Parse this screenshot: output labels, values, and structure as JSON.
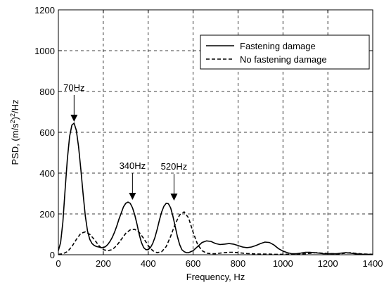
{
  "chart_data": {
    "type": "line",
    "xlabel": "Frequency, Hz",
    "ylabel_prefix": "PSD, (m/s",
    "ylabel_sup1": "2",
    "ylabel_mid": ")",
    "ylabel_sup2": "2",
    "ylabel_suffix": "/Hz",
    "xlim": [
      0,
      1400
    ],
    "ylim": [
      0,
      1200
    ],
    "xticks": [
      0,
      200,
      400,
      600,
      800,
      1000,
      1200,
      1400
    ],
    "yticks": [
      0,
      200,
      400,
      600,
      800,
      1000,
      1200
    ],
    "grid": true,
    "legend_position": "top-right",
    "series": [
      {
        "name": "Fastening damage",
        "style": "solid",
        "x": [
          0,
          10,
          20,
          30,
          40,
          50,
          60,
          70,
          80,
          90,
          100,
          110,
          120,
          130,
          140,
          150,
          160,
          170,
          180,
          190,
          200,
          210,
          220,
          230,
          240,
          250,
          260,
          270,
          280,
          290,
          300,
          310,
          320,
          330,
          340,
          350,
          360,
          370,
          380,
          390,
          400,
          410,
          420,
          430,
          440,
          450,
          460,
          470,
          480,
          490,
          500,
          510,
          520,
          530,
          540,
          550,
          560,
          570,
          580,
          590,
          600,
          620,
          640,
          660,
          680,
          700,
          720,
          740,
          760,
          780,
          800,
          820,
          840,
          860,
          880,
          900,
          920,
          940,
          960,
          980,
          1000,
          1020,
          1040,
          1060,
          1080,
          1100,
          1120,
          1140,
          1160,
          1180,
          1200,
          1220,
          1240,
          1260,
          1280,
          1300,
          1320,
          1340,
          1360,
          1380,
          1400
        ],
        "values": [
          20,
          60,
          160,
          320,
          470,
          580,
          635,
          645,
          610,
          530,
          420,
          300,
          190,
          115,
          75,
          55,
          45,
          40,
          38,
          35,
          35,
          40,
          50,
          65,
          85,
          110,
          140,
          175,
          205,
          235,
          252,
          258,
          252,
          230,
          195,
          150,
          100,
          60,
          35,
          25,
          25,
          35,
          55,
          85,
          125,
          170,
          210,
          238,
          252,
          250,
          230,
          190,
          140,
          90,
          50,
          25,
          15,
          10,
          10,
          15,
          20,
          40,
          60,
          68,
          65,
          55,
          50,
          52,
          55,
          52,
          45,
          38,
          35,
          38,
          45,
          55,
          62,
          60,
          48,
          30,
          18,
          10,
          5,
          5,
          8,
          12,
          12,
          10,
          8,
          5,
          5,
          5,
          5,
          8,
          10,
          8,
          5,
          3,
          2,
          2,
          2
        ]
      },
      {
        "name": "No fastening damage",
        "style": "dashed",
        "x": [
          0,
          20,
          40,
          60,
          80,
          100,
          120,
          140,
          160,
          180,
          200,
          220,
          240,
          260,
          280,
          300,
          320,
          340,
          360,
          380,
          400,
          420,
          440,
          460,
          480,
          500,
          520,
          540,
          560,
          580,
          600,
          620,
          640,
          660,
          680,
          700,
          720,
          740,
          760,
          780,
          800,
          820,
          840,
          860,
          880,
          900,
          920,
          940,
          960,
          980,
          1000,
          1050,
          1100,
          1150,
          1200,
          1250,
          1300,
          1350,
          1400
        ],
        "values": [
          2,
          5,
          15,
          40,
          75,
          105,
          112,
          100,
          75,
          45,
          25,
          20,
          25,
          45,
          75,
          105,
          122,
          125,
          110,
          80,
          45,
          20,
          10,
          15,
          40,
          90,
          150,
          195,
          210,
          180,
          110,
          50,
          20,
          8,
          5,
          5,
          8,
          10,
          12,
          12,
          10,
          8,
          6,
          5,
          4,
          3,
          3,
          3,
          2,
          2,
          2,
          3,
          5,
          10,
          6,
          4,
          10,
          4,
          2
        ]
      }
    ],
    "annotations": [
      {
        "text": "70Hz",
        "x": 70,
        "arrow_tip_y": 645
      },
      {
        "text": "340Hz",
        "x": 330,
        "arrow_tip_y": 262
      },
      {
        "text": "520Hz",
        "x": 515,
        "arrow_tip_y": 258
      }
    ]
  }
}
